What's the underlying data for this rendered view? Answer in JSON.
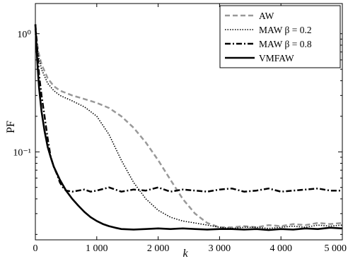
{
  "chart_data": {
    "type": "line",
    "title": "",
    "xlabel": "k",
    "ylabel": "PF",
    "xlim": [
      0,
      5000
    ],
    "ylim": [
      0.018,
      1.8
    ],
    "yscale": "log",
    "grid": false,
    "legend_position": "top-right",
    "x_ticks": [
      0,
      1000,
      2000,
      3000,
      4000,
      5000
    ],
    "x_tick_labels": [
      "0",
      "1 000",
      "2 000",
      "3 000",
      "4 000",
      "5 000"
    ],
    "y_ticks": [
      1,
      0.1
    ],
    "y_tick_labels": [
      "10⁰",
      "10⁻¹"
    ],
    "series": [
      {
        "name": "AW",
        "style": "dashed",
        "color": "#999999",
        "x": [
          0,
          50,
          100,
          200,
          300,
          400,
          600,
          800,
          1000,
          1200,
          1400,
          1600,
          1800,
          2000,
          2200,
          2400,
          2600,
          2800,
          3000,
          3200,
          3400,
          3600,
          3800,
          4000,
          4200,
          4400,
          4600,
          4800,
          5000
        ],
        "y": [
          1.1,
          0.7,
          0.55,
          0.42,
          0.36,
          0.33,
          0.3,
          0.28,
          0.26,
          0.235,
          0.2,
          0.16,
          0.12,
          0.085,
          0.058,
          0.04,
          0.03,
          0.025,
          0.023,
          0.023,
          0.0235,
          0.023,
          0.024,
          0.0235,
          0.0245,
          0.024,
          0.025,
          0.0245,
          0.025
        ]
      },
      {
        "name": "MAW β = 0.2",
        "style": "dotted",
        "color": "#000000",
        "x": [
          0,
          50,
          100,
          200,
          300,
          400,
          600,
          800,
          1000,
          1200,
          1400,
          1600,
          1800,
          2000,
          2200,
          2400,
          2600,
          2800,
          3000,
          3200,
          3400,
          3600,
          3800,
          4000,
          4200,
          4400,
          4600,
          4800,
          5000
        ],
        "y": [
          1.0,
          0.65,
          0.5,
          0.38,
          0.33,
          0.3,
          0.27,
          0.24,
          0.2,
          0.14,
          0.085,
          0.055,
          0.04,
          0.032,
          0.028,
          0.026,
          0.025,
          0.024,
          0.023,
          0.0225,
          0.023,
          0.023,
          0.0225,
          0.023,
          0.0235,
          0.023,
          0.024,
          0.0235,
          0.024
        ]
      },
      {
        "name": "MAW β = 0.8",
        "style": "dashdot",
        "color": "#000000",
        "x": [
          0,
          30,
          60,
          100,
          150,
          200,
          250,
          300,
          350,
          400,
          450,
          500,
          600,
          700,
          800,
          900,
          1000,
          1200,
          1400,
          1600,
          1800,
          2000,
          2200,
          2400,
          2600,
          2800,
          3000,
          3200,
          3400,
          3600,
          3800,
          4000,
          4200,
          4400,
          4600,
          4800,
          5000
        ],
        "y": [
          1.2,
          0.75,
          0.45,
          0.3,
          0.2,
          0.13,
          0.09,
          0.075,
          0.065,
          0.055,
          0.05,
          0.047,
          0.046,
          0.047,
          0.048,
          0.046,
          0.047,
          0.05,
          0.046,
          0.048,
          0.047,
          0.05,
          0.046,
          0.048,
          0.047,
          0.046,
          0.048,
          0.049,
          0.046,
          0.047,
          0.049,
          0.046,
          0.047,
          0.048,
          0.049,
          0.047,
          0.047
        ]
      },
      {
        "name": "VMFAW",
        "style": "solid",
        "color": "#000000",
        "x": [
          0,
          30,
          60,
          100,
          150,
          200,
          250,
          300,
          400,
          500,
          600,
          700,
          800,
          900,
          1000,
          1100,
          1200,
          1300,
          1400,
          1600,
          1800,
          2000,
          2200,
          2400,
          2600,
          2800,
          3000,
          3200,
          3400,
          3600,
          3800,
          4000,
          4200,
          4400,
          4600,
          4800,
          5000
        ],
        "y": [
          1.2,
          0.6,
          0.35,
          0.22,
          0.15,
          0.11,
          0.09,
          0.075,
          0.058,
          0.047,
          0.04,
          0.035,
          0.031,
          0.028,
          0.026,
          0.0245,
          0.0235,
          0.0228,
          0.0222,
          0.022,
          0.0222,
          0.0225,
          0.0222,
          0.0225,
          0.0222,
          0.022,
          0.0222,
          0.0222,
          0.022,
          0.0222,
          0.0218,
          0.0222,
          0.022,
          0.0225,
          0.0222,
          0.0228,
          0.0225
        ]
      }
    ]
  }
}
